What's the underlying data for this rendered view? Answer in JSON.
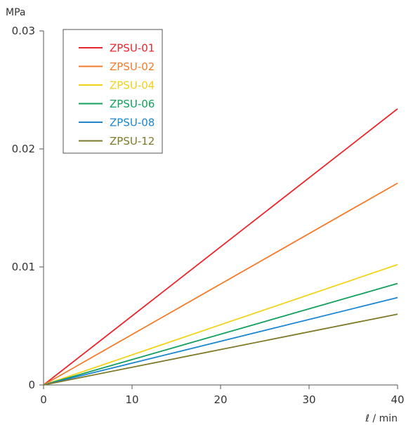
{
  "chart_data": {
    "type": "line",
    "title": "",
    "xlabel": "ℓ / min",
    "ylabel": "MPa",
    "xlim": [
      0,
      40
    ],
    "ylim": [
      0,
      0.03
    ],
    "x_ticks": [
      0,
      10,
      20,
      30,
      40
    ],
    "x_tick_labels": [
      "0",
      "10",
      "20",
      "30",
      "40"
    ],
    "y_ticks": [
      0,
      0.01,
      0.02,
      0.03
    ],
    "y_tick_labels": [
      "0",
      "0.01",
      "0.02",
      "0.03"
    ],
    "grid": false,
    "legend_position": "top-left",
    "series": [
      {
        "name": "ZPSU-01",
        "color": "#e8262c",
        "x": [
          0,
          40
        ],
        "y": [
          0,
          0.0234
        ]
      },
      {
        "name": "ZPSU-02",
        "color": "#f47b2a",
        "x": [
          0,
          40
        ],
        "y": [
          0,
          0.0171
        ]
      },
      {
        "name": "ZPSU-04",
        "color": "#f2d31a",
        "x": [
          0,
          40
        ],
        "y": [
          0,
          0.0102
        ]
      },
      {
        "name": "ZPSU-06",
        "color": "#12a05c",
        "x": [
          0,
          40
        ],
        "y": [
          0,
          0.0086
        ]
      },
      {
        "name": "ZPSU-08",
        "color": "#1c86d2",
        "x": [
          0,
          40
        ],
        "y": [
          0,
          0.0074
        ]
      },
      {
        "name": "ZPSU-12",
        "color": "#7e7a28",
        "x": [
          0,
          40
        ],
        "y": [
          0,
          0.006
        ]
      }
    ]
  }
}
